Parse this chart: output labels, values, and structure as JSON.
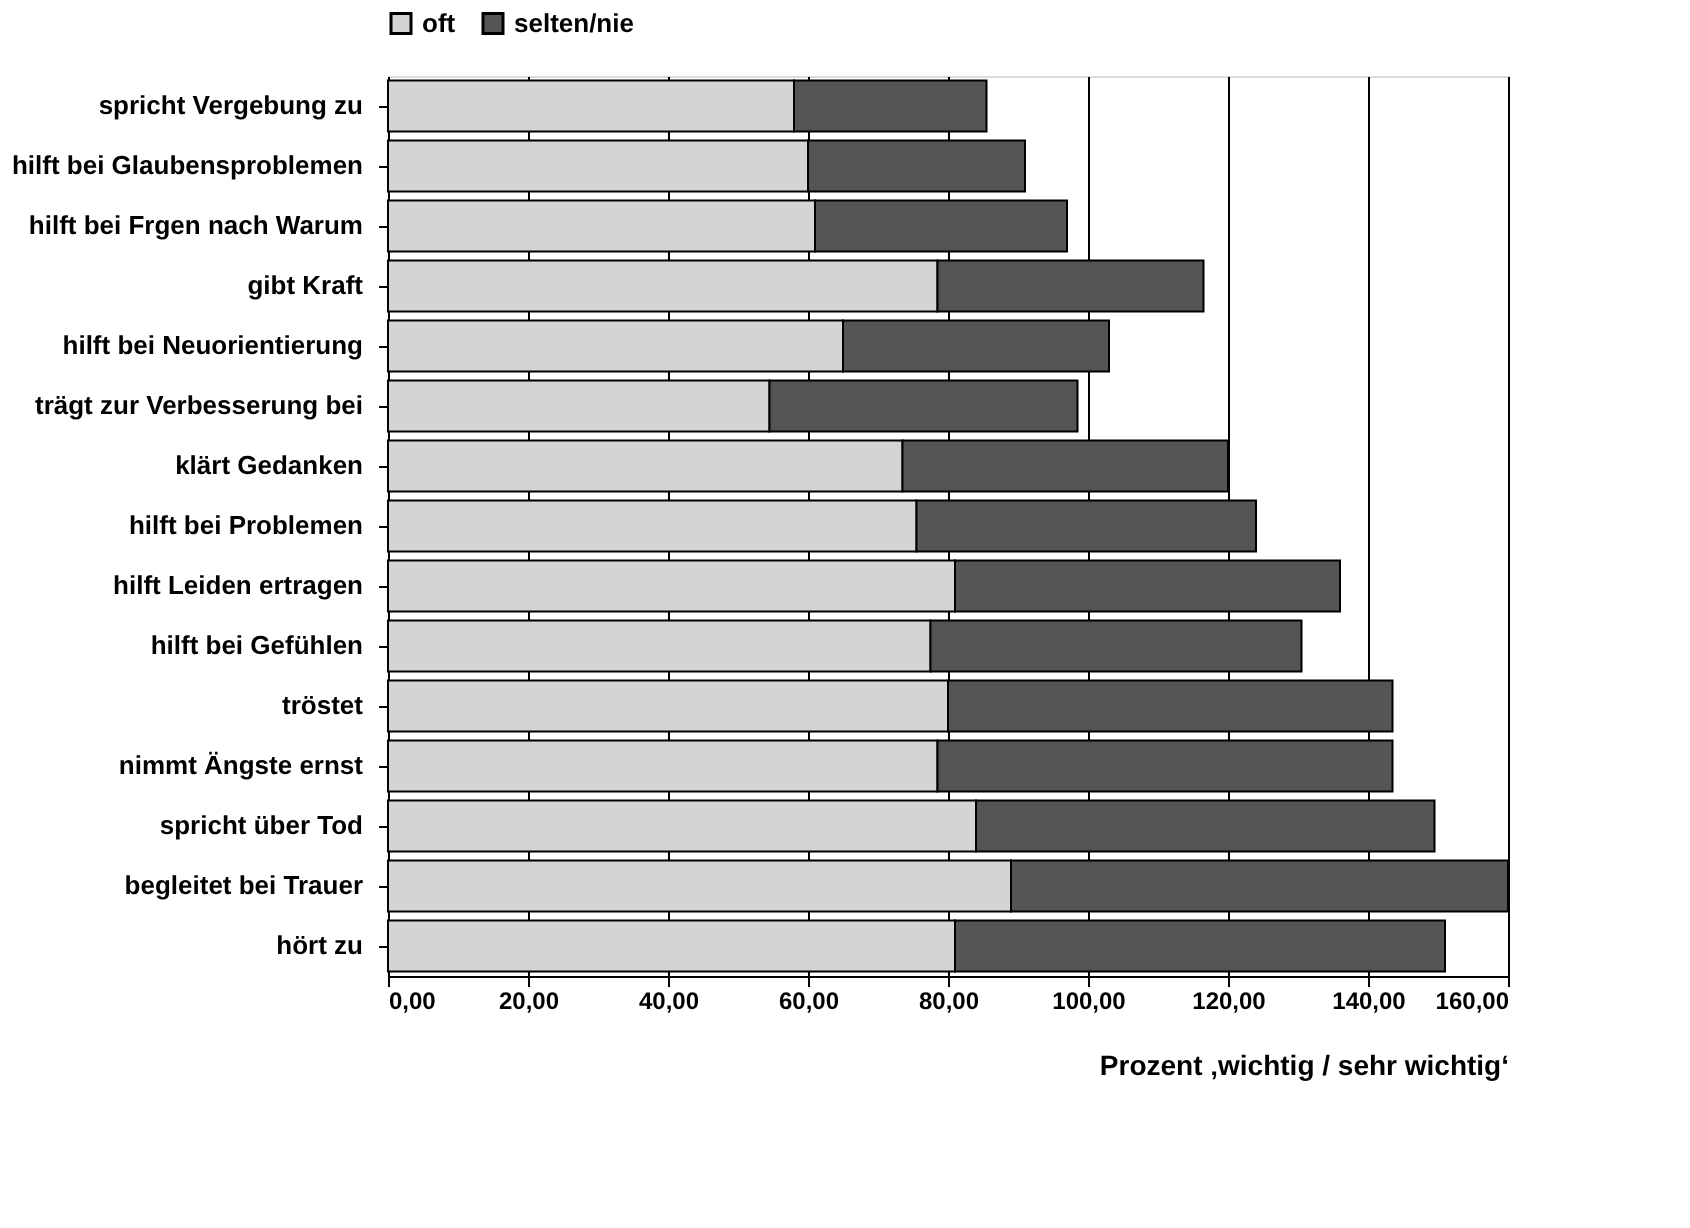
{
  "chart_data": {
    "type": "bar",
    "orientation": "horizontal",
    "stacked": true,
    "categories": [
      "spricht Vergebung zu",
      "hilft bei Glaubensproblemen",
      "hilft bei Frgen nach Warum",
      "gibt Kraft",
      "hilft bei Neuorientierung",
      "trägt zur Verbesserung bei",
      "klärt Gedanken",
      "hilft bei Problemen",
      "hilft Leiden ertragen",
      "hilft bei Gefühlen",
      "tröstet",
      "nimmt Ängste ernst",
      "spricht über Tod",
      "begleitet  bei Trauer",
      "hört zu"
    ],
    "series": [
      {
        "name": "oft",
        "color": "#d4d4d4",
        "values": [
          58,
          60,
          61,
          78.5,
          65,
          54.5,
          73.5,
          75.5,
          81,
          77.5,
          80,
          78.5,
          84,
          89,
          81
        ]
      },
      {
        "name": "selten/nie",
        "color": "#555555",
        "values": [
          27.5,
          31,
          36,
          38,
          38,
          44,
          46.5,
          48.5,
          55,
          53,
          63.5,
          65,
          65.5,
          71,
          70
        ]
      }
    ],
    "xlabel": "Prozent ‚wichtig / sehr wichtig‘",
    "xlim": [
      0,
      160
    ],
    "xticks": [
      {
        "value": 0,
        "label": "0,00"
      },
      {
        "value": 20,
        "label": "20,00"
      },
      {
        "value": 40,
        "label": "40,00"
      },
      {
        "value": 60,
        "label": "60,00"
      },
      {
        "value": 80,
        "label": "80,00"
      },
      {
        "value": 100,
        "label": "100,00"
      },
      {
        "value": 120,
        "label": "120,00"
      },
      {
        "value": 140,
        "label": "140,00"
      },
      {
        "value": 160,
        "label": "160,00"
      }
    ],
    "grid": "x",
    "legend": "top"
  }
}
